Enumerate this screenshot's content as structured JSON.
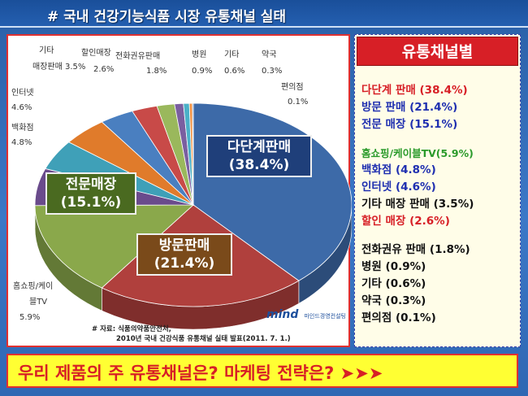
{
  "header": {
    "title": "# 국내 건강기능식품 시장 유통채널 실태"
  },
  "chart_data": {
    "type": "pie",
    "title": "",
    "slices": [
      {
        "label": "다단계판매",
        "value": 38.4,
        "color": "#3d6aa8",
        "display": "다단계판매\n(38.4%)"
      },
      {
        "label": "방문판매",
        "value": 21.4,
        "color": "#b0403d",
        "display": "방문판매\n(21.4%)"
      },
      {
        "label": "전문매장",
        "value": 15.1,
        "color": "#8aa84b",
        "display": "전문매장\n(15.1%)"
      },
      {
        "label": "홈쇼핑/케이블TV",
        "value": 5.9,
        "color": "#6a4b8c",
        "display": "홈쇼핑/케이\n블TV\n5.9%"
      },
      {
        "label": "백화점",
        "value": 4.8,
        "color": "#3fa0b8",
        "display": "백화점\n4.8%"
      },
      {
        "label": "인터넷",
        "value": 4.6,
        "color": "#e07b2b",
        "display": "인터넷\n4.6%"
      },
      {
        "label": "기타 매장판매",
        "value": 3.5,
        "color": "#4a7fc0",
        "display": "기타\n매장판매 3.5%"
      },
      {
        "label": "할인매장",
        "value": 2.6,
        "color": "#c84a48",
        "display": "할인매장\n2.6%"
      },
      {
        "label": "전화권유판매",
        "value": 1.8,
        "color": "#9ab85c",
        "display": "전화권유판매\n1.8%"
      },
      {
        "label": "병원",
        "value": 0.9,
        "color": "#7a5fa0",
        "display": "병원\n0.9%"
      },
      {
        "label": "기타",
        "value": 0.6,
        "color": "#4ab0c8",
        "display": "기타\n0.6%"
      },
      {
        "label": "약국",
        "value": 0.3,
        "color": "#f09040",
        "display": "약국\n0.3%"
      },
      {
        "label": "편의점",
        "value": 0.1,
        "color": "#4a70b8",
        "display": "편의점\n0.1%"
      }
    ]
  },
  "source": {
    "line1": "# 자료: 식품의약품안전처,",
    "line2": "2010년 국내 건강식품 유통채널 실태 발표(2011. 7. 1.)"
  },
  "logo": {
    "main": "mind",
    "sub": "마인드경영컨설팅"
  },
  "legend": {
    "title": "유통채널별",
    "groups": [
      [
        {
          "text": "다단계 판매 (38.4%)",
          "color": "#d71f26"
        },
        {
          "text": "방문 판매 (21.4%)",
          "color": "#1f2fb0"
        },
        {
          "text": "전문 매장 (15.1%)",
          "color": "#1f2fb0"
        }
      ],
      [
        {
          "text": "홈쇼핑/케이블TV(5.9%)",
          "color": "#2a9a2a"
        },
        {
          "text": "백화점 (4.8%)",
          "color": "#1f2fb0"
        },
        {
          "text": "인터넷 (4.6%)",
          "color": "#1f2fb0"
        },
        {
          "text": "기타 매장 판매 (3.5%)",
          "color": "#111111"
        },
        {
          "text": "할인 매장 (2.6%)",
          "color": "#d71f26"
        }
      ],
      [
        {
          "text": "전화권유 판매 (1.8%)",
          "color": "#111111"
        },
        {
          "text": "병원 (0.9%)",
          "color": "#111111"
        },
        {
          "text": "기타 (0.6%)",
          "color": "#111111"
        },
        {
          "text": "약국 (0.3%)",
          "color": "#111111"
        },
        {
          "text": "편의점 (0.1%)",
          "color": "#111111"
        }
      ]
    ]
  },
  "banner": {
    "text": "우리 제품의 주 유통채널은? 마케팅 전략은? ➤➤➤"
  }
}
